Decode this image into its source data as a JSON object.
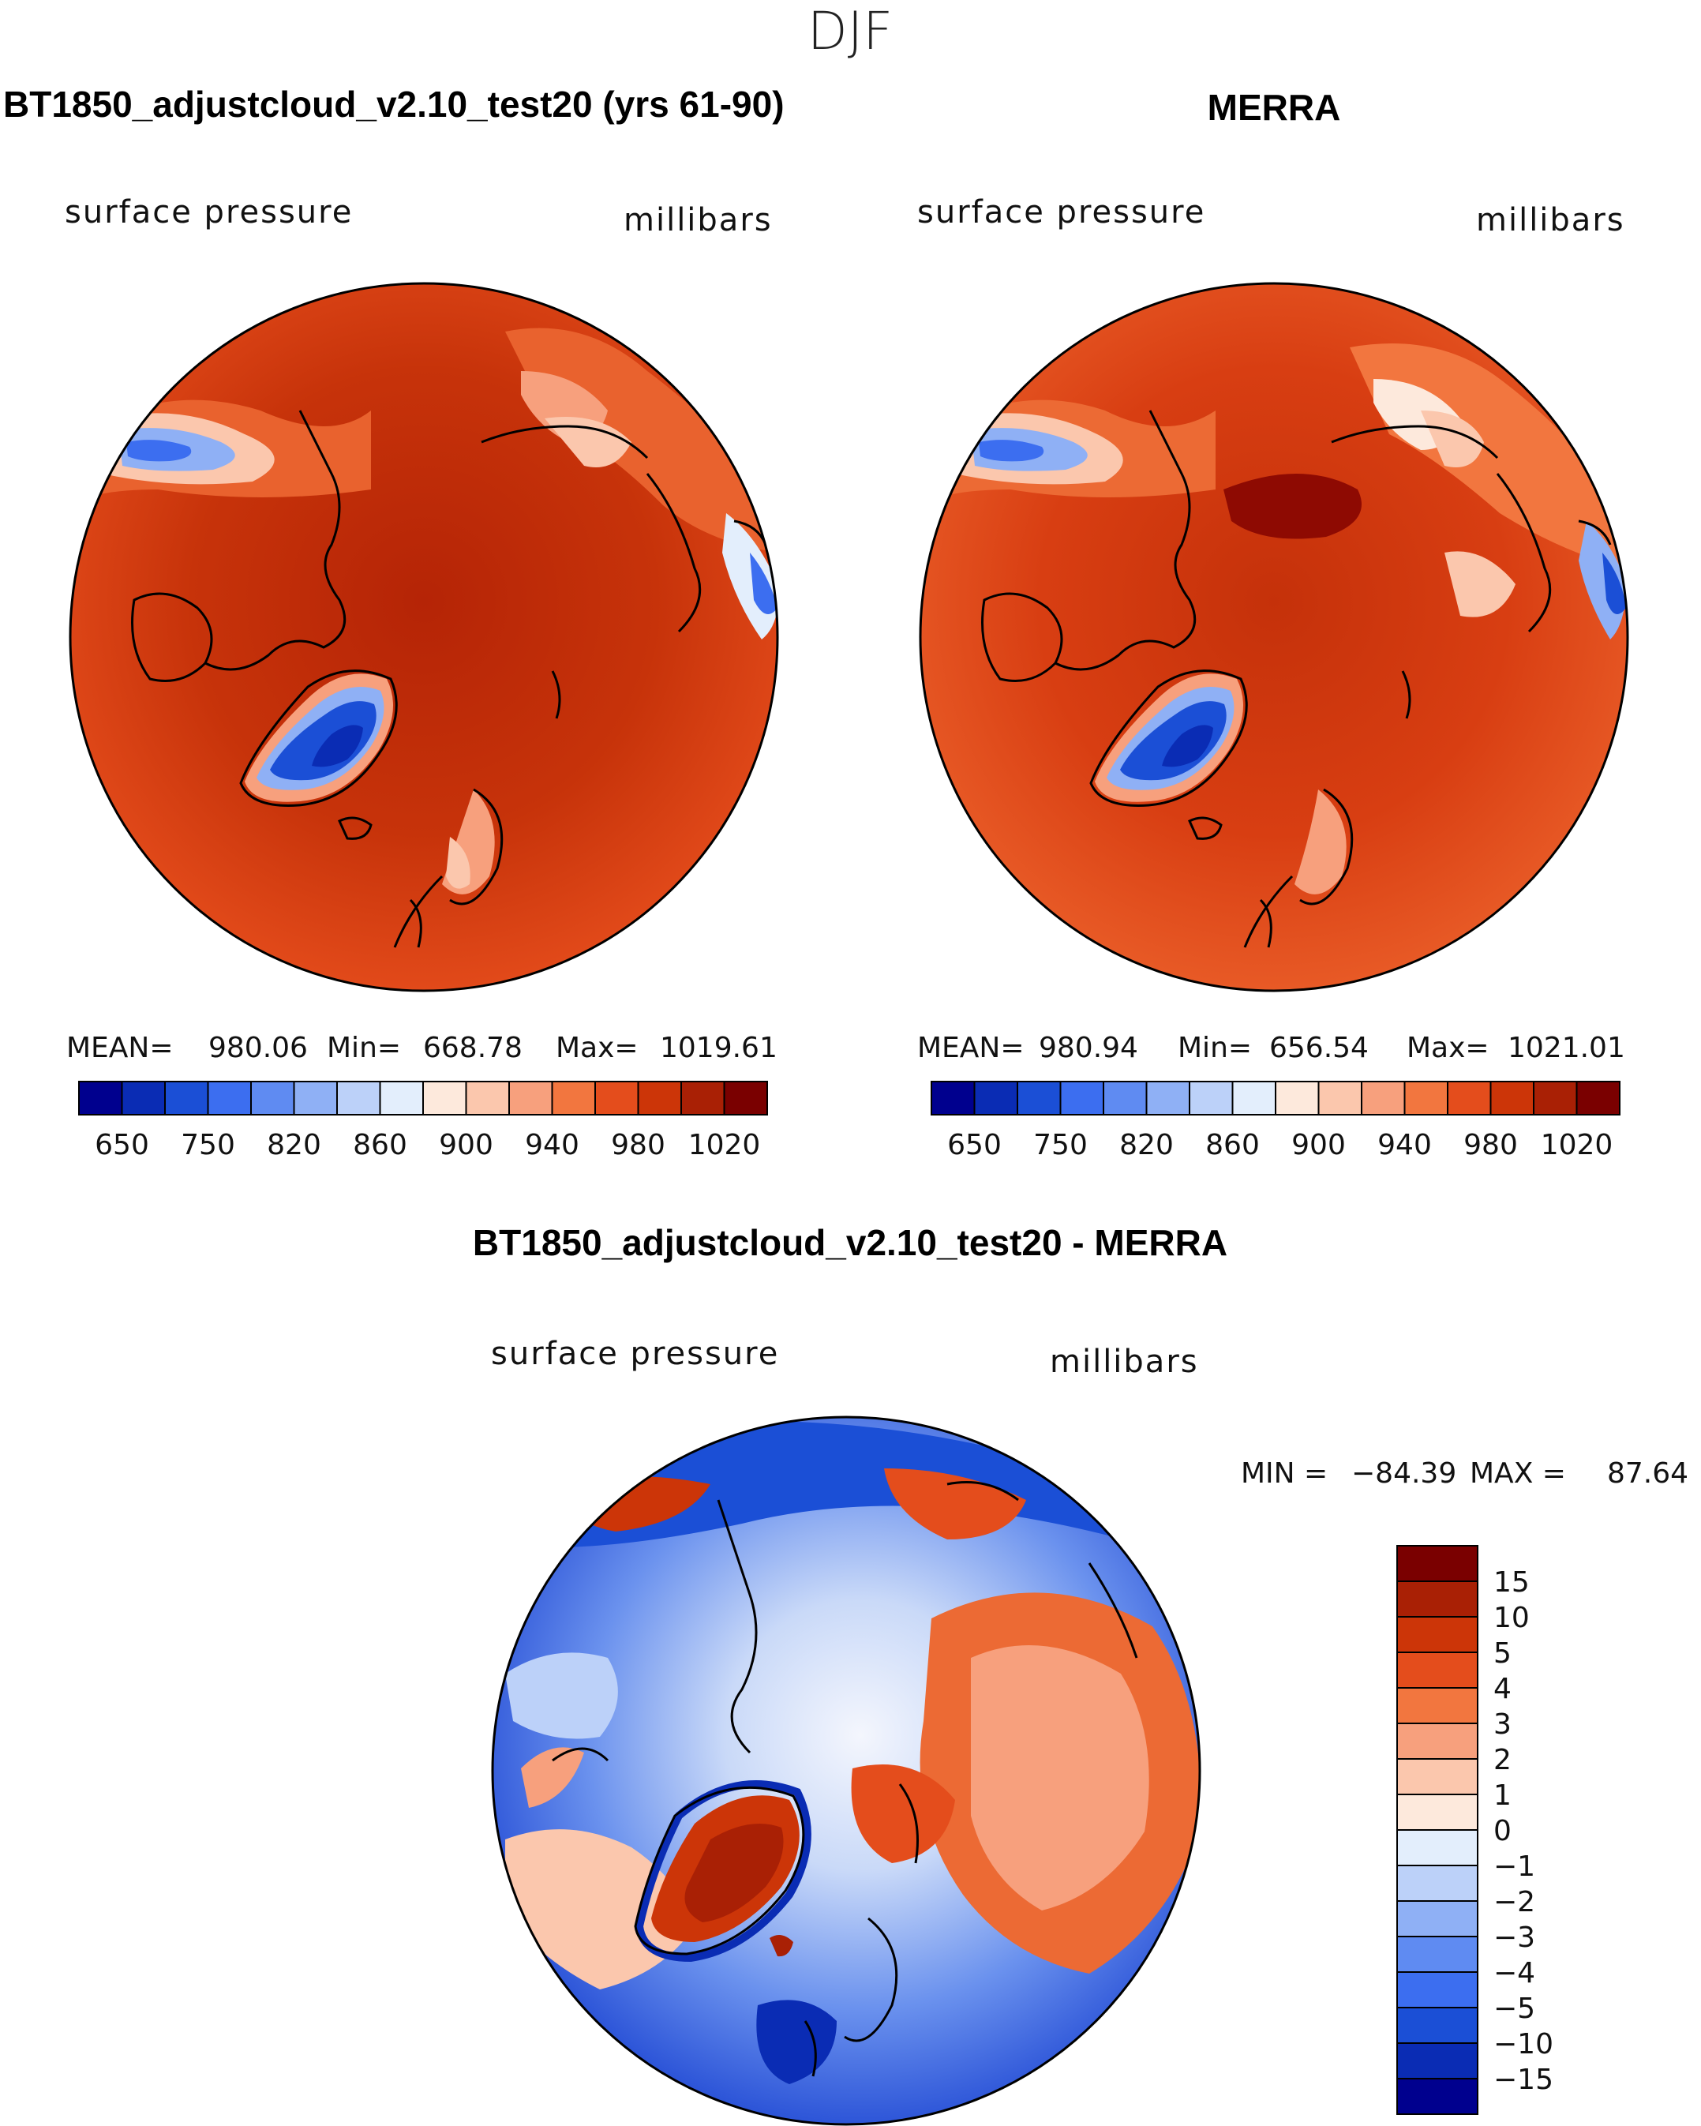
{
  "season_title": "DJF",
  "chart_data": [
    {
      "type": "contour-map",
      "projection": "polar-stereographic (north pole)",
      "title": "BT1850_adjustcloud_v2.10_test20 (yrs 61-90)",
      "left_label": "surface pressure",
      "right_label": "millibars",
      "stats": {
        "mean_label": "MEAN=",
        "mean": "980.06",
        "min_label": "Min=",
        "min": "668.78",
        "max_label": "Max=",
        "max": "1019.61"
      },
      "colorbar": {
        "orientation": "horizontal",
        "tick_labels": [
          "650",
          "750",
          "820",
          "860",
          "900",
          "940",
          "980",
          "1020"
        ],
        "colors": [
          "#00008e",
          "#0a2cb4",
          "#1b4fd6",
          "#3c6ef0",
          "#5f8bf2",
          "#8fb0f5",
          "#bcd1f9",
          "#e3eefc",
          "#fde9dc",
          "#fbc7ad",
          "#f7a07d",
          "#f2763f",
          "#e44d1c",
          "#cc3508",
          "#a92005",
          "#7a0000"
        ]
      }
    },
    {
      "type": "contour-map",
      "projection": "polar-stereographic (north pole)",
      "title": "MERRA",
      "left_label": "surface pressure",
      "right_label": "millibars",
      "stats": {
        "mean_label": "MEAN=",
        "mean": "980.94",
        "min_label": "Min=",
        "min": "656.54",
        "max_label": "Max=",
        "max": "1021.01"
      },
      "colorbar": {
        "orientation": "horizontal",
        "tick_labels": [
          "650",
          "750",
          "820",
          "860",
          "900",
          "940",
          "980",
          "1020"
        ],
        "colors": [
          "#00008e",
          "#0a2cb4",
          "#1b4fd6",
          "#3c6ef0",
          "#5f8bf2",
          "#8fb0f5",
          "#bcd1f9",
          "#e3eefc",
          "#fde9dc",
          "#fbc7ad",
          "#f7a07d",
          "#f2763f",
          "#e44d1c",
          "#cc3508",
          "#a92005",
          "#7a0000"
        ]
      }
    },
    {
      "type": "contour-map",
      "projection": "polar-stereographic (north pole)",
      "title": "BT1850_adjustcloud_v2.10_test20 - MERRA",
      "left_label": "surface pressure",
      "right_label": "millibars",
      "stats": {
        "min_label": "MIN =",
        "min": "−84.39",
        "max_label": "MAX =",
        "max": "87.64"
      },
      "colorbar": {
        "orientation": "vertical",
        "tick_labels": [
          "15",
          "10",
          "5",
          "4",
          "3",
          "2",
          "1",
          "0",
          "−1",
          "−2",
          "−3",
          "−4",
          "−5",
          "−10",
          "−15"
        ],
        "colors": [
          "#7a0000",
          "#a92005",
          "#cc3508",
          "#e44d1c",
          "#f2763f",
          "#f7a07d",
          "#fbc7ad",
          "#fde9dc",
          "#e3eefc",
          "#bcd1f9",
          "#8fb0f5",
          "#5f8bf2",
          "#3c6ef0",
          "#1b4fd6",
          "#0a2cb4",
          "#00008e"
        ]
      }
    }
  ]
}
